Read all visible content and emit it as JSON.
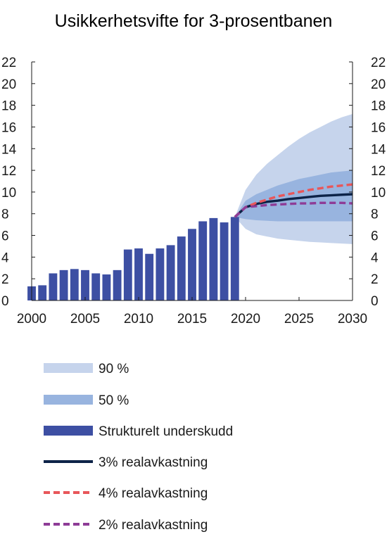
{
  "chart_data": {
    "type": "bar",
    "title": "Usikkerhetsvifte for 3-prosentbanen",
    "xlabel": "",
    "ylabel": "",
    "xlim": [
      2000,
      2030
    ],
    "ylim": [
      0,
      22
    ],
    "x_ticks": [
      2000,
      2005,
      2010,
      2015,
      2020,
      2025,
      2030
    ],
    "y_ticks": [
      0,
      2,
      4,
      6,
      8,
      10,
      12,
      14,
      16,
      18,
      20,
      22
    ],
    "grid": false,
    "bars": {
      "name": "Strukturelt underskudd",
      "color": "#3d4fa3",
      "years": [
        2000,
        2001,
        2002,
        2003,
        2004,
        2005,
        2006,
        2007,
        2008,
        2009,
        2010,
        2011,
        2012,
        2013,
        2014,
        2015,
        2016,
        2017,
        2018,
        2019
      ],
      "values": [
        1.3,
        1.4,
        2.5,
        2.8,
        2.9,
        2.8,
        2.5,
        2.4,
        2.8,
        4.7,
        4.8,
        4.3,
        4.8,
        5.1,
        5.9,
        6.6,
        7.3,
        7.6,
        7.2,
        7.7
      ]
    },
    "bands": [
      {
        "name": "90 %",
        "color": "#c6d4ec",
        "x": [
          2019,
          2020,
          2021,
          2022,
          2023,
          2024,
          2025,
          2026,
          2027,
          2028,
          2029,
          2030
        ],
        "lower": [
          7.7,
          6.6,
          6.1,
          5.9,
          5.7,
          5.6,
          5.5,
          5.4,
          5.35,
          5.3,
          5.25,
          5.2
        ],
        "upper": [
          7.7,
          10.2,
          11.6,
          12.6,
          13.4,
          14.2,
          14.9,
          15.5,
          16.0,
          16.5,
          16.9,
          17.2
        ]
      },
      {
        "name": "50 %",
        "color": "#98b4df",
        "x": [
          2019,
          2020,
          2021,
          2022,
          2023,
          2024,
          2025,
          2026,
          2027,
          2028,
          2029,
          2030
        ],
        "lower": [
          7.7,
          7.5,
          7.4,
          7.35,
          7.3,
          7.3,
          7.3,
          7.3,
          7.3,
          7.3,
          7.3,
          7.3
        ],
        "upper": [
          7.7,
          9.2,
          9.8,
          10.2,
          10.6,
          10.9,
          11.2,
          11.4,
          11.6,
          11.8,
          11.9,
          12.0
        ]
      }
    ],
    "series": [
      {
        "name": "3% realavkastning",
        "color": "#0d2348",
        "style": "solid",
        "x": [
          2019,
          2020,
          2021,
          2022,
          2023,
          2024,
          2025,
          2026,
          2027,
          2028,
          2029,
          2030
        ],
        "values": [
          7.7,
          8.6,
          8.9,
          9.1,
          9.2,
          9.35,
          9.45,
          9.55,
          9.65,
          9.7,
          9.75,
          9.8
        ]
      },
      {
        "name": "4% realavkastning",
        "color": "#e8565a",
        "style": "dashed",
        "x": [
          2019,
          2020,
          2021,
          2022,
          2023,
          2024,
          2025,
          2026,
          2027,
          2028,
          2029,
          2030
        ],
        "values": [
          7.7,
          8.6,
          9.0,
          9.3,
          9.6,
          9.8,
          10.0,
          10.2,
          10.35,
          10.5,
          10.6,
          10.7
        ]
      },
      {
        "name": "2% realavkastning",
        "color": "#8e3c97",
        "style": "dashed",
        "x": [
          2019,
          2020,
          2021,
          2022,
          2023,
          2024,
          2025,
          2026,
          2027,
          2028,
          2029,
          2030
        ],
        "values": [
          7.7,
          8.6,
          8.7,
          8.8,
          8.85,
          8.9,
          8.95,
          8.95,
          9.0,
          9.0,
          9.0,
          8.95
        ]
      }
    ],
    "legend": {
      "placement": "bottom",
      "entries": [
        {
          "label": "90 %",
          "kind": "band",
          "color": "#c6d4ec"
        },
        {
          "label": "50 %",
          "kind": "band",
          "color": "#98b4df"
        },
        {
          "label": "Strukturelt underskudd",
          "kind": "bar",
          "color": "#3d4fa3"
        },
        {
          "label": "3% realavkastning",
          "kind": "solid",
          "color": "#0d2348"
        },
        {
          "label": "4% realavkastning",
          "kind": "dashed",
          "color": "#e8565a"
        },
        {
          "label": "2% realavkastning",
          "kind": "dashed",
          "color": "#8e3c97"
        }
      ]
    }
  }
}
